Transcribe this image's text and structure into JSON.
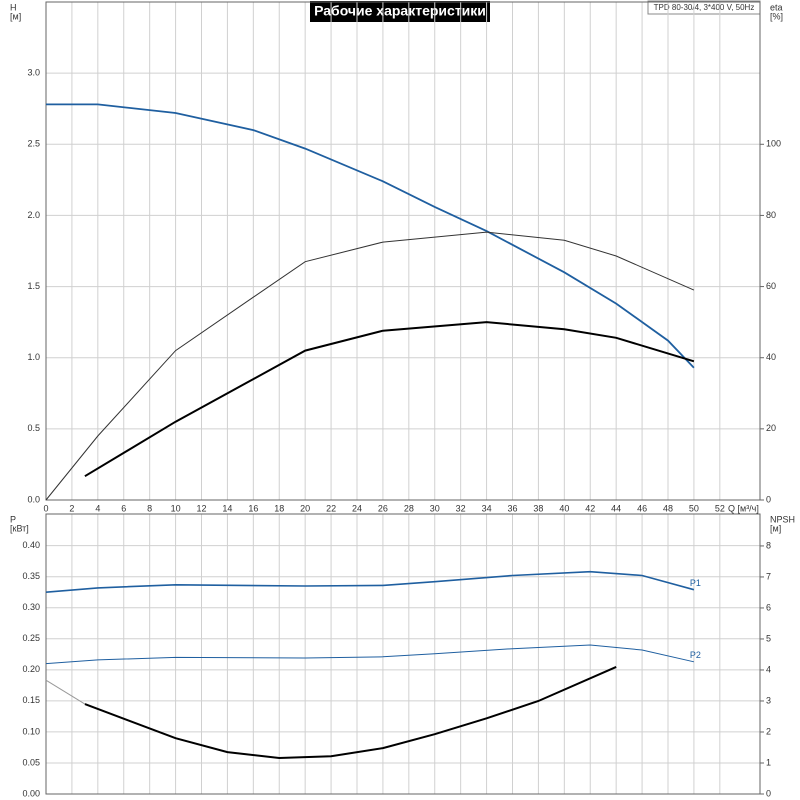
{
  "chart_data": [
    {
      "type": "line",
      "title": "Рабочие характеристики",
      "info": "TPD 80-30/4, 3*400 V, 50Hz",
      "ylabel": "H",
      "yunit": "[м]",
      "y2label": "eta",
      "y2unit": "[%]",
      "xlabel": "Q [м³/ч]",
      "xlim": [
        0,
        55.1
      ],
      "xticks": [
        0,
        2,
        4,
        6,
        8,
        10,
        12,
        14,
        16,
        18,
        20,
        22,
        24,
        26,
        28,
        30,
        32,
        34,
        36,
        38,
        40,
        42,
        44,
        46,
        48,
        50,
        52
      ],
      "ylim": [
        0,
        3.5
      ],
      "yticks": [
        {
          "value": 0,
          "label": "0.0"
        },
        0.5,
        {
          "value": 1,
          "label": "1.0"
        },
        1.5,
        {
          "value": 2,
          "label": "2.0"
        },
        2.5,
        {
          "value": 3,
          "label": "3.0"
        }
      ],
      "y2lim": [
        0,
        140
      ],
      "y2ticks": [
        0,
        20,
        40,
        60,
        80,
        100
      ],
      "grid": true,
      "xtick_labels": true,
      "series": [
        {
          "color": "#1f5fa0",
          "width": 1.8,
          "axis": "y",
          "x": [
            0,
            4,
            10,
            16,
            20,
            26,
            30,
            34,
            40,
            44,
            48,
            50
          ],
          "values": [
            2.78,
            2.78,
            2.72,
            2.6,
            2.47,
            2.24,
            2.06,
            1.89,
            1.6,
            1.38,
            1.12,
            0.93
          ]
        },
        {
          "color": "#333333",
          "width": 1,
          "axis": "y2",
          "x": [
            0,
            4,
            10,
            16,
            20,
            26,
            34,
            40,
            44,
            50
          ],
          "values": [
            0,
            18,
            42,
            57,
            67,
            72.5,
            75.3,
            73,
            68.6,
            59
          ]
        },
        {
          "color": "#000000",
          "width": 2,
          "axis": "y2",
          "x": [
            3,
            10,
            16,
            20,
            26,
            34,
            40,
            44,
            50
          ],
          "values": [
            6.7,
            22,
            34,
            42,
            47.6,
            50,
            48,
            45.6,
            39
          ]
        }
      ]
    },
    {
      "type": "line",
      "ylabel": "P",
      "yunit": "[кВт]",
      "y2label": "NPSH",
      "y2unit": "[м]",
      "xlim": [
        0,
        55.1
      ],
      "xticks": [
        0,
        2,
        4,
        6,
        8,
        10,
        12,
        14,
        16,
        18,
        20,
        22,
        24,
        26,
        28,
        30,
        32,
        34,
        36,
        38,
        40,
        42,
        44,
        46,
        48,
        50,
        52
      ],
      "ylim": [
        0,
        0.451
      ],
      "yticks": [
        {
          "value": 0,
          "label": "0.00"
        },
        0.05,
        {
          "value": 0.1,
          "label": "0.10"
        },
        0.15,
        {
          "value": 0.2,
          "label": "0.20"
        },
        0.25,
        {
          "value": 0.3,
          "label": "0.30"
        },
        0.35,
        {
          "value": 0.4,
          "label": "0.40"
        }
      ],
      "y2lim": [
        0,
        9.03
      ],
      "y2ticks": [
        0,
        1,
        2,
        3,
        4,
        5,
        6,
        7,
        8
      ],
      "grid": true,
      "xtick_labels": false,
      "series": [
        {
          "name": "P1",
          "color": "#1f5fa0",
          "width": 1.6,
          "axis": "y",
          "x": [
            0,
            4,
            10,
            20,
            26,
            30,
            36,
            42,
            46,
            50
          ],
          "values": [
            0.325,
            0.332,
            0.337,
            0.335,
            0.336,
            0.342,
            0.352,
            0.358,
            0.352,
            0.329
          ]
        },
        {
          "name": "P2",
          "color": "#1f5fa0",
          "width": 1,
          "axis": "y",
          "x": [
            0,
            4,
            10,
            20,
            26,
            30,
            36,
            42,
            46,
            50
          ],
          "values": [
            0.21,
            0.216,
            0.22,
            0.219,
            0.221,
            0.226,
            0.234,
            0.24,
            0.232,
            0.213
          ]
        },
        {
          "color": "#000000",
          "width": 2,
          "axis": "y2",
          "x": [
            3,
            10,
            14,
            18,
            22,
            26,
            30,
            34,
            38,
            44
          ],
          "values": [
            2.9,
            1.8,
            1.35,
            1.16,
            1.22,
            1.48,
            1.93,
            2.44,
            3.0,
            4.1
          ]
        },
        {
          "color": "#999999",
          "width": 1,
          "axis": "y2",
          "x": [
            0,
            3
          ],
          "values": [
            3.67,
            2.9
          ]
        }
      ]
    }
  ]
}
